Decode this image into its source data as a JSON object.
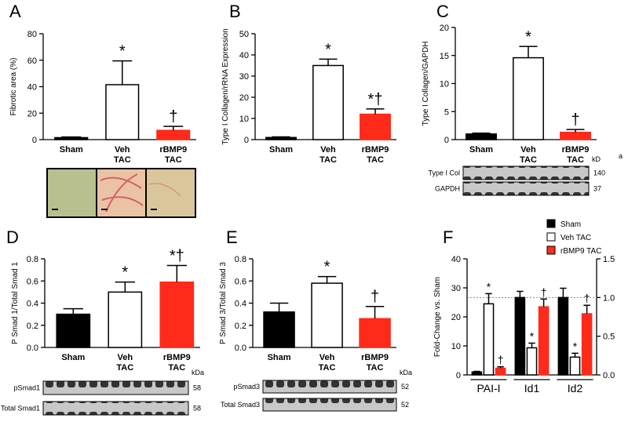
{
  "chart_data": [
    {
      "panel": "A",
      "type": "bar",
      "ylabel": "Fibrotic area (%)",
      "categories": [
        "Sham",
        "Veh\nTAC",
        "rBMP9\nTAC"
      ],
      "values": [
        1.5,
        41.5,
        7
      ],
      "errors": [
        0.5,
        18,
        3
      ],
      "colors": [
        "#000000",
        "#ffffff",
        "#ff2a1a"
      ],
      "annotations": [
        null,
        "*",
        "†"
      ],
      "ylim": [
        0,
        80
      ],
      "yticks": [
        0,
        20,
        40,
        60,
        80
      ]
    },
    {
      "panel": "B",
      "type": "bar",
      "ylabel": "Type I Collagen/rRNA Expression",
      "categories": [
        "Sham",
        "Veh\nTAC",
        "rBMP9\nTAC"
      ],
      "values": [
        1,
        35,
        12
      ],
      "errors": [
        0.3,
        3,
        2.5
      ],
      "colors": [
        "#000000",
        "#ffffff",
        "#ff2a1a"
      ],
      "annotations": [
        null,
        "*",
        "*†"
      ],
      "ylim": [
        0,
        50
      ],
      "yticks": [
        0,
        10,
        20,
        30,
        40,
        50
      ]
    },
    {
      "panel": "C",
      "type": "bar",
      "ylabel": "Type I Collagen/GAPDH",
      "categories": [
        "Sham",
        "Veh\nTAC",
        "rBMP9\nTAC"
      ],
      "values": [
        1,
        14.6,
        1.3
      ],
      "errors": [
        0.15,
        2,
        0.5
      ],
      "colors": [
        "#000000",
        "#ffffff",
        "#ff2a1a"
      ],
      "annotations": [
        null,
        "*",
        "†"
      ],
      "ylim": [
        0,
        20
      ],
      "yticks": [
        0,
        5,
        10,
        15,
        20
      ],
      "blot": {
        "unit": "kD",
        "rows": [
          {
            "label": "Type I Col",
            "size": "140"
          },
          {
            "label": "GAPDH",
            "size": "37"
          }
        ]
      },
      "note": "a"
    },
    {
      "panel": "D",
      "type": "bar",
      "ylabel": "P Smad 1/Total Smad 1",
      "categories": [
        "Sham",
        "Veh\nTAC",
        "rBMP9\nTAC"
      ],
      "values": [
        0.3,
        0.5,
        0.59
      ],
      "errors": [
        0.05,
        0.09,
        0.15
      ],
      "colors": [
        "#000000",
        "#ffffff",
        "#ff2a1a"
      ],
      "annotations": [
        null,
        "*",
        "*†"
      ],
      "ylim": [
        0,
        0.8
      ],
      "yticks": [
        {
          "value": 0,
          "label": "0.0"
        },
        0.2,
        0.4,
        0.6,
        0.8
      ],
      "blot": {
        "unit": "kDa",
        "rows": [
          {
            "label": "pSmad1",
            "size": "58"
          },
          {
            "label": "Total Smad1",
            "size": "58"
          }
        ]
      }
    },
    {
      "panel": "E",
      "type": "bar",
      "ylabel": "P Smad 3/Total Smad 3",
      "categories": [
        "Sham",
        "Veh\nTAC",
        "rBMP9\nTAC"
      ],
      "values": [
        0.32,
        0.58,
        0.26
      ],
      "errors": [
        0.08,
        0.06,
        0.11
      ],
      "colors": [
        "#000000",
        "#ffffff",
        "#ff2a1a"
      ],
      "annotations": [
        null,
        "*",
        "†"
      ],
      "ylim": [
        0,
        0.8
      ],
      "yticks": [
        {
          "value": 0,
          "label": "0.0"
        },
        0.2,
        0.4,
        0.6,
        0.8
      ],
      "blot": {
        "unit": "kDa",
        "rows": [
          {
            "label": "pSmad3",
            "size": "52"
          },
          {
            "label": "Total Smad3",
            "size": "52"
          }
        ]
      }
    },
    {
      "panel": "F",
      "type": "grouped_bar",
      "ylabel": "Fold-Change vs. Sham",
      "categories": [
        "PAI-I",
        "Id1",
        "Id2"
      ],
      "category_axis": [
        "y",
        "y2",
        "y2"
      ],
      "series": [
        {
          "name": "Sham",
          "color": "#000000",
          "values": [
            1,
            1,
            1
          ],
          "errors": [
            0.2,
            0.08,
            0.12
          ],
          "annotations": [
            null,
            null,
            null
          ]
        },
        {
          "name": "Veh TAC",
          "color": "#ffffff",
          "values": [
            24.5,
            0.35,
            0.23
          ],
          "errors": [
            3.5,
            0.06,
            0.05
          ],
          "annotations": [
            "*",
            "*",
            "*"
          ]
        },
        {
          "name": "rBMP9 TAC",
          "color": "#ff2a1a",
          "values": [
            2.3,
            0.88,
            0.79
          ],
          "errors": [
            0.5,
            0.1,
            0.11
          ],
          "annotations": [
            "†",
            "†",
            "†"
          ]
        }
      ],
      "ylim": [
        0,
        40
      ],
      "yticks": [
        0,
        10,
        20,
        30,
        40
      ],
      "y2lim": [
        0,
        1.5
      ],
      "y2ticks": [
        {
          "value": 0,
          "label": "0.0"
        },
        {
          "value": 0.5,
          "label": "0.5"
        },
        {
          "value": 1,
          "label": "1.0"
        },
        {
          "value": 1.5,
          "label": "1.5"
        }
      ],
      "reference_line": {
        "axis": "y2",
        "value": 1
      }
    }
  ]
}
